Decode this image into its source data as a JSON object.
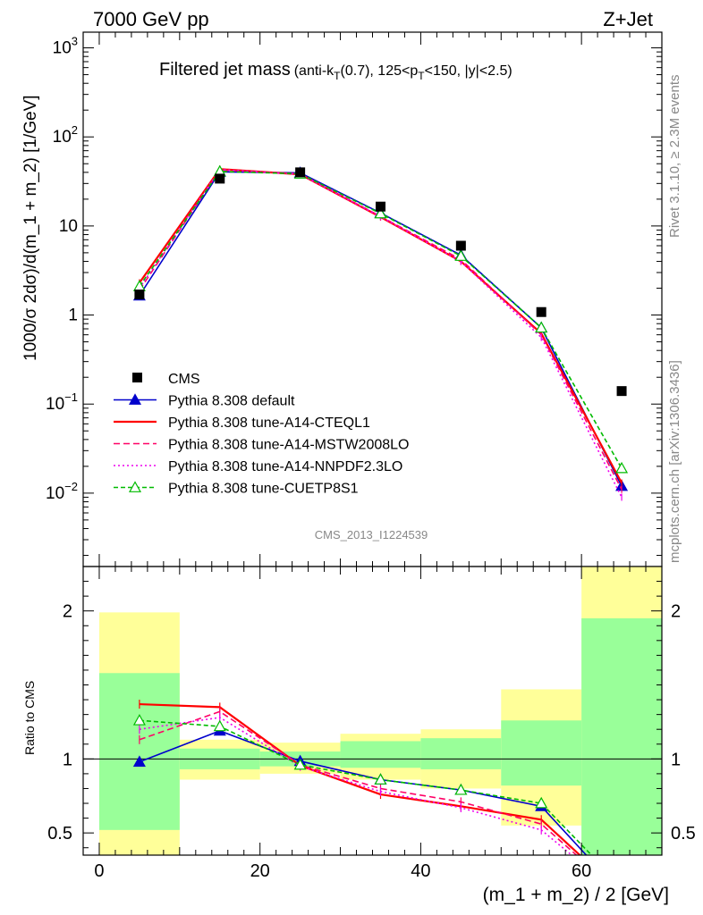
{
  "header": {
    "energy": "7000 GeV pp",
    "process": "Z+Jet"
  },
  "side": {
    "rivet": "Rivet 3.1.10, ≥ 2.3M events",
    "mcplots": "mcplots.cern.ch [arXiv:1306.3436]"
  },
  "chart_data": {
    "type": "line",
    "title": "Filtered jet mass",
    "subtitle_parts": {
      "open": "(anti-k",
      "sub1": "T",
      "mid": "(0.7), 125<p",
      "sub2": "T",
      "close": "<150, |y|<2.5)"
    },
    "analysis_id": "CMS_2013_I1224539",
    "xlabel": "(m_1 + m_2) / 2 [GeV]",
    "ylabel": "1000/σ 2dσ)/d(m_1 + m_2) [1/GeV]",
    "ratio_ylabel": "Ratio to CMS",
    "xlim": [
      -2,
      70
    ],
    "ylim": [
      0.0015,
      1500
    ],
    "yscale": "log",
    "ratio_ylim": [
      0.35,
      2.3
    ],
    "x_ticks": [
      0,
      20,
      40,
      60
    ],
    "y_ticks_main": [
      {
        "v": 1000,
        "base": "10",
        "exp": "3"
      },
      {
        "v": 100,
        "base": "10",
        "exp": "2"
      },
      {
        "v": 10,
        "base": "10",
        "exp": ""
      },
      {
        "v": 1,
        "base": "1",
        "exp": ""
      },
      {
        "v": 0.1,
        "base": "10",
        "exp": "−1"
      },
      {
        "v": 0.01,
        "base": "10",
        "exp": "−2"
      }
    ],
    "y_ticks_ratio": [
      {
        "v": 2,
        "label": "2"
      },
      {
        "v": 1,
        "label": "1"
      },
      {
        "v": 0.5,
        "label": "0.5"
      }
    ],
    "x": [
      5,
      15,
      25,
      35,
      45,
      55,
      65
    ],
    "data": {
      "name": "CMS",
      "values": [
        1.7,
        34,
        40,
        16.5,
        6.0,
        1.08,
        0.14
      ]
    },
    "uncertainty_bands": {
      "edges": [
        [
          0,
          10
        ],
        [
          10,
          20
        ],
        [
          20,
          30
        ],
        [
          30,
          40
        ],
        [
          40,
          50
        ],
        [
          50,
          60
        ],
        [
          60,
          70
        ]
      ],
      "inner": [
        [
          0.52,
          1.58
        ],
        [
          0.93,
          1.07
        ],
        [
          0.95,
          1.05
        ],
        [
          0.94,
          1.12
        ],
        [
          0.93,
          1.14
        ],
        [
          0.82,
          1.26
        ],
        [
          0.35,
          1.95
        ]
      ],
      "outer": [
        [
          0.35,
          1.99
        ],
        [
          0.86,
          1.13
        ],
        [
          0.9,
          1.11
        ],
        [
          0.86,
          1.17
        ],
        [
          0.8,
          1.2
        ],
        [
          0.55,
          1.47
        ],
        [
          0.35,
          2.3
        ]
      ]
    },
    "legend_position": "lower-left",
    "series": [
      {
        "name": "Pythia 8.308 default",
        "color": "#0000cc",
        "dash": "",
        "marker": "triangle-filled",
        "values": [
          1.65,
          40.5,
          39.5,
          14.0,
          4.7,
          0.72,
          0.012
        ],
        "ratio": [
          0.98,
          1.19,
          0.985,
          0.86,
          0.79,
          0.68,
          0.09
        ]
      },
      {
        "name": "Pythia 8.308 tune-A14-CTEQL1",
        "color": "#ff0000",
        "dash": "",
        "marker": "none",
        "values": [
          2.3,
          43.5,
          38.0,
          12.6,
          4.0,
          0.62,
          0.013
        ],
        "ratio": [
          1.37,
          1.35,
          0.955,
          0.76,
          0.68,
          0.59,
          0.09
        ]
      },
      {
        "name": "Pythia 8.308 tune-A14-MSTW2008LO",
        "color": "#ff0066",
        "dash": "7,4",
        "marker": "none",
        "values": [
          1.9,
          42.5,
          38.5,
          12.8,
          4.2,
          0.6,
          0.011
        ],
        "ratio": [
          1.13,
          1.32,
          0.96,
          0.8,
          0.71,
          0.56,
          0.08
        ]
      },
      {
        "name": "Pythia 8.308 tune-A14-NNPDF2.3LO",
        "color": "#ee00ee",
        "dash": "2,3",
        "marker": "none",
        "values": [
          2.0,
          43.0,
          38.0,
          12.7,
          4.0,
          0.56,
          0.009
        ],
        "ratio": [
          1.2,
          1.28,
          0.95,
          0.78,
          0.67,
          0.52,
          0.07
        ]
      },
      {
        "name": "Pythia 8.308 tune-CUETP8S1",
        "color": "#00bb00",
        "dash": "5,3",
        "marker": "triangle-open",
        "values": [
          2.1,
          41.0,
          38.5,
          13.8,
          4.6,
          0.72,
          0.019
        ],
        "ratio": [
          1.26,
          1.22,
          0.96,
          0.86,
          0.79,
          0.7,
          0.14
        ]
      }
    ]
  }
}
